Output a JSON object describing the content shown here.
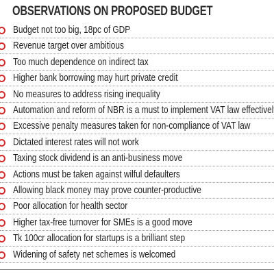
{
  "title": "OBSERVATIONS ON PROPOSED BUDGET",
  "items": [
    "Budget not too big, 18pc of GDP",
    "Revenue target over ambitious",
    "Too much dependence on indirect tax",
    "Higher bank borrowing may hurt private credit",
    "No measures to address rising inequality",
    "Automation and reform of NBR is a must to implement VAT law effectively",
    "Excessive penalty measures taken for non-compliance of VAT law",
    "Dictated interest rates will not work",
    "Taxing stock dividend is an anti-business move",
    "Actions must be taken against wilful defaulters",
    "Allowing black money may prove counter-productive",
    "Poor allocation for health sector",
    "Higher tax-free turnover for SMEs is a good move",
    "Tk 100cr allocation for startups is a brilliant step",
    "Widening of safety net schemes is welcomed"
  ]
}
